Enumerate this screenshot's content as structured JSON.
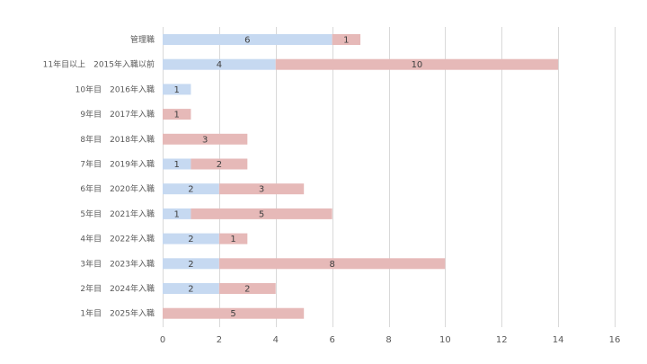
{
  "chart_data": {
    "type": "bar",
    "orientation": "horizontal",
    "stacked": true,
    "categories": [
      "管理職",
      "11年目以上　2015年入職以前",
      "10年目　2016年入職",
      "9年目　2017年入職",
      "8年目　2018年入職",
      "7年目　2019年入職",
      "6年目　2020年入職",
      "5年目　2021年入職",
      "4年目　2022年入職",
      "3年目　2023年入職",
      "2年目　2024年入職",
      "1年目　2025年入職"
    ],
    "series": [
      {
        "color": "#c6d9f1",
        "values": [
          6,
          4,
          1,
          0,
          0,
          1,
          2,
          1,
          2,
          2,
          2,
          0
        ]
      },
      {
        "color": "#e6b9b8",
        "values": [
          1,
          10,
          0,
          1,
          3,
          2,
          3,
          5,
          1,
          8,
          2,
          5
        ]
      }
    ],
    "xlim": [
      0,
      16
    ],
    "xticks": [
      "0",
      "2",
      "4",
      "6",
      "8",
      "10",
      "12",
      "14",
      "16"
    ],
    "grid": "vertical",
    "legend": "none",
    "title": "",
    "xlabel": "",
    "ylabel": ""
  }
}
